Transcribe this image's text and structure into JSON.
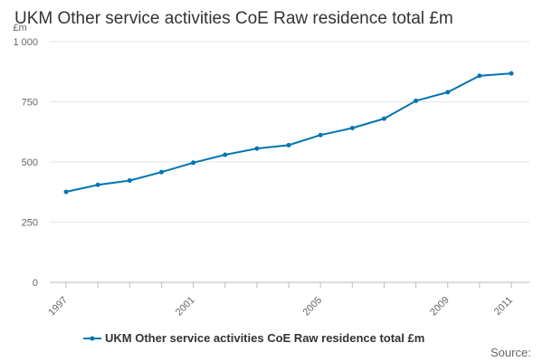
{
  "chart_data": {
    "type": "line",
    "title": "UKM Other service activities CoE Raw residence total £m",
    "ylabel": "£m",
    "xlabel": "",
    "x": [
      1997,
      1998,
      1999,
      2000,
      2001,
      2002,
      2003,
      2004,
      2005,
      2006,
      2007,
      2008,
      2009,
      2010,
      2011
    ],
    "series": [
      {
        "name": "UKM Other service activities CoE Raw residence total £m",
        "color": "#0075b0",
        "values": [
          376,
          405,
          423,
          458,
          497,
          530,
          556,
          570,
          612,
          641,
          680,
          754,
          790,
          858,
          868
        ]
      }
    ],
    "ylim": [
      0,
      1000
    ],
    "yticks": [
      0,
      250,
      500,
      750,
      1000
    ],
    "ytick_labels": [
      "0",
      "250",
      "500",
      "750",
      "1 000"
    ],
    "xtick_labels": [
      "1997",
      "2001",
      "2005",
      "2009",
      "2011"
    ],
    "grid": true,
    "legend_position": "bottom"
  },
  "source_label": "Source:"
}
